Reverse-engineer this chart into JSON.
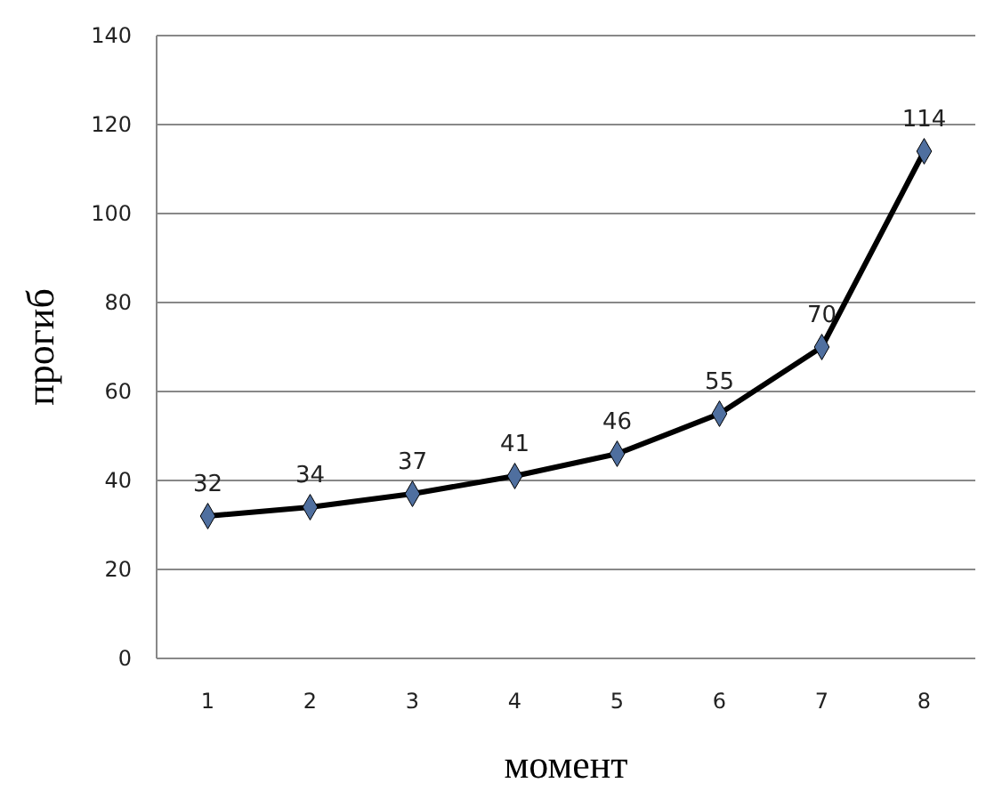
{
  "chart_data": {
    "type": "line",
    "xlabel": "момент",
    "ylabel": "прогиб",
    "categories": [
      "1",
      "2",
      "3",
      "4",
      "5",
      "6",
      "7",
      "8"
    ],
    "series": [
      {
        "color": "#000000",
        "values": [
          32,
          34,
          37,
          41,
          46,
          55,
          70,
          114
        ]
      }
    ],
    "ylim": [
      0,
      140
    ],
    "yticks": [
      0,
      20,
      40,
      60,
      80,
      100,
      120,
      140
    ],
    "grid": "y",
    "marker": "diamond",
    "data_labels": true
  }
}
